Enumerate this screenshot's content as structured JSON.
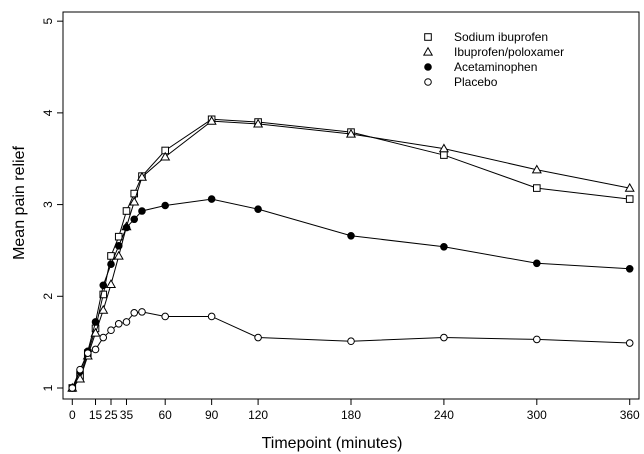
{
  "chart_data": {
    "type": "line",
    "title": "",
    "xlabel": "Timepoint (minutes)",
    "ylabel": "Mean pain relief",
    "xlim": [
      -6,
      366
    ],
    "ylim": [
      0.88,
      5.1
    ],
    "x_ticks": [
      0,
      15,
      25,
      35,
      60,
      90,
      120,
      180,
      240,
      300,
      360
    ],
    "x_tick_labels": [
      "0",
      "15",
      "25",
      "35",
      "60",
      "90",
      "120",
      "180",
      "240",
      "300",
      "360"
    ],
    "y_ticks": [
      1,
      2,
      3,
      4,
      5
    ],
    "y_tick_labels": [
      "1",
      "2",
      "3",
      "4",
      "5"
    ],
    "grid": false,
    "legend_position": "top-right",
    "series": [
      {
        "name": "Sodium ibuprofen",
        "marker": "square-open",
        "x": [
          0,
          5,
          10,
          15,
          20,
          25,
          30,
          35,
          40,
          45,
          60,
          90,
          120,
          180,
          240,
          300,
          360
        ],
        "y": [
          1.0,
          1.13,
          1.38,
          1.65,
          2.02,
          2.44,
          2.65,
          2.93,
          3.12,
          3.31,
          3.59,
          3.93,
          3.9,
          3.79,
          3.54,
          3.18,
          3.06
        ]
      },
      {
        "name": "Ibuprofen/poloxamer",
        "marker": "triangle-open",
        "x": [
          0,
          5,
          10,
          15,
          20,
          25,
          30,
          35,
          40,
          45,
          60,
          90,
          120,
          180,
          240,
          300,
          360
        ],
        "y": [
          1.0,
          1.1,
          1.35,
          1.6,
          1.85,
          2.13,
          2.44,
          2.76,
          3.03,
          3.3,
          3.52,
          3.91,
          3.88,
          3.77,
          3.61,
          3.38,
          3.18
        ]
      },
      {
        "name": "Acetaminophen",
        "marker": "circle-filled",
        "x": [
          0,
          5,
          10,
          15,
          20,
          25,
          30,
          35,
          40,
          45,
          60,
          90,
          120,
          180,
          240,
          300,
          360
        ],
        "y": [
          1.0,
          1.18,
          1.4,
          1.72,
          2.12,
          2.35,
          2.55,
          2.75,
          2.84,
          2.93,
          2.99,
          3.06,
          2.95,
          2.66,
          2.54,
          2.36,
          2.3
        ]
      },
      {
        "name": "Placebo",
        "marker": "circle-open",
        "x": [
          0,
          5,
          10,
          15,
          20,
          25,
          30,
          35,
          40,
          45,
          60,
          90,
          120,
          180,
          240,
          300,
          360
        ],
        "y": [
          1.0,
          1.2,
          1.38,
          1.42,
          1.55,
          1.63,
          1.7,
          1.72,
          1.82,
          1.83,
          1.78,
          1.78,
          1.55,
          1.51,
          1.55,
          1.53,
          1.49
        ]
      }
    ]
  }
}
